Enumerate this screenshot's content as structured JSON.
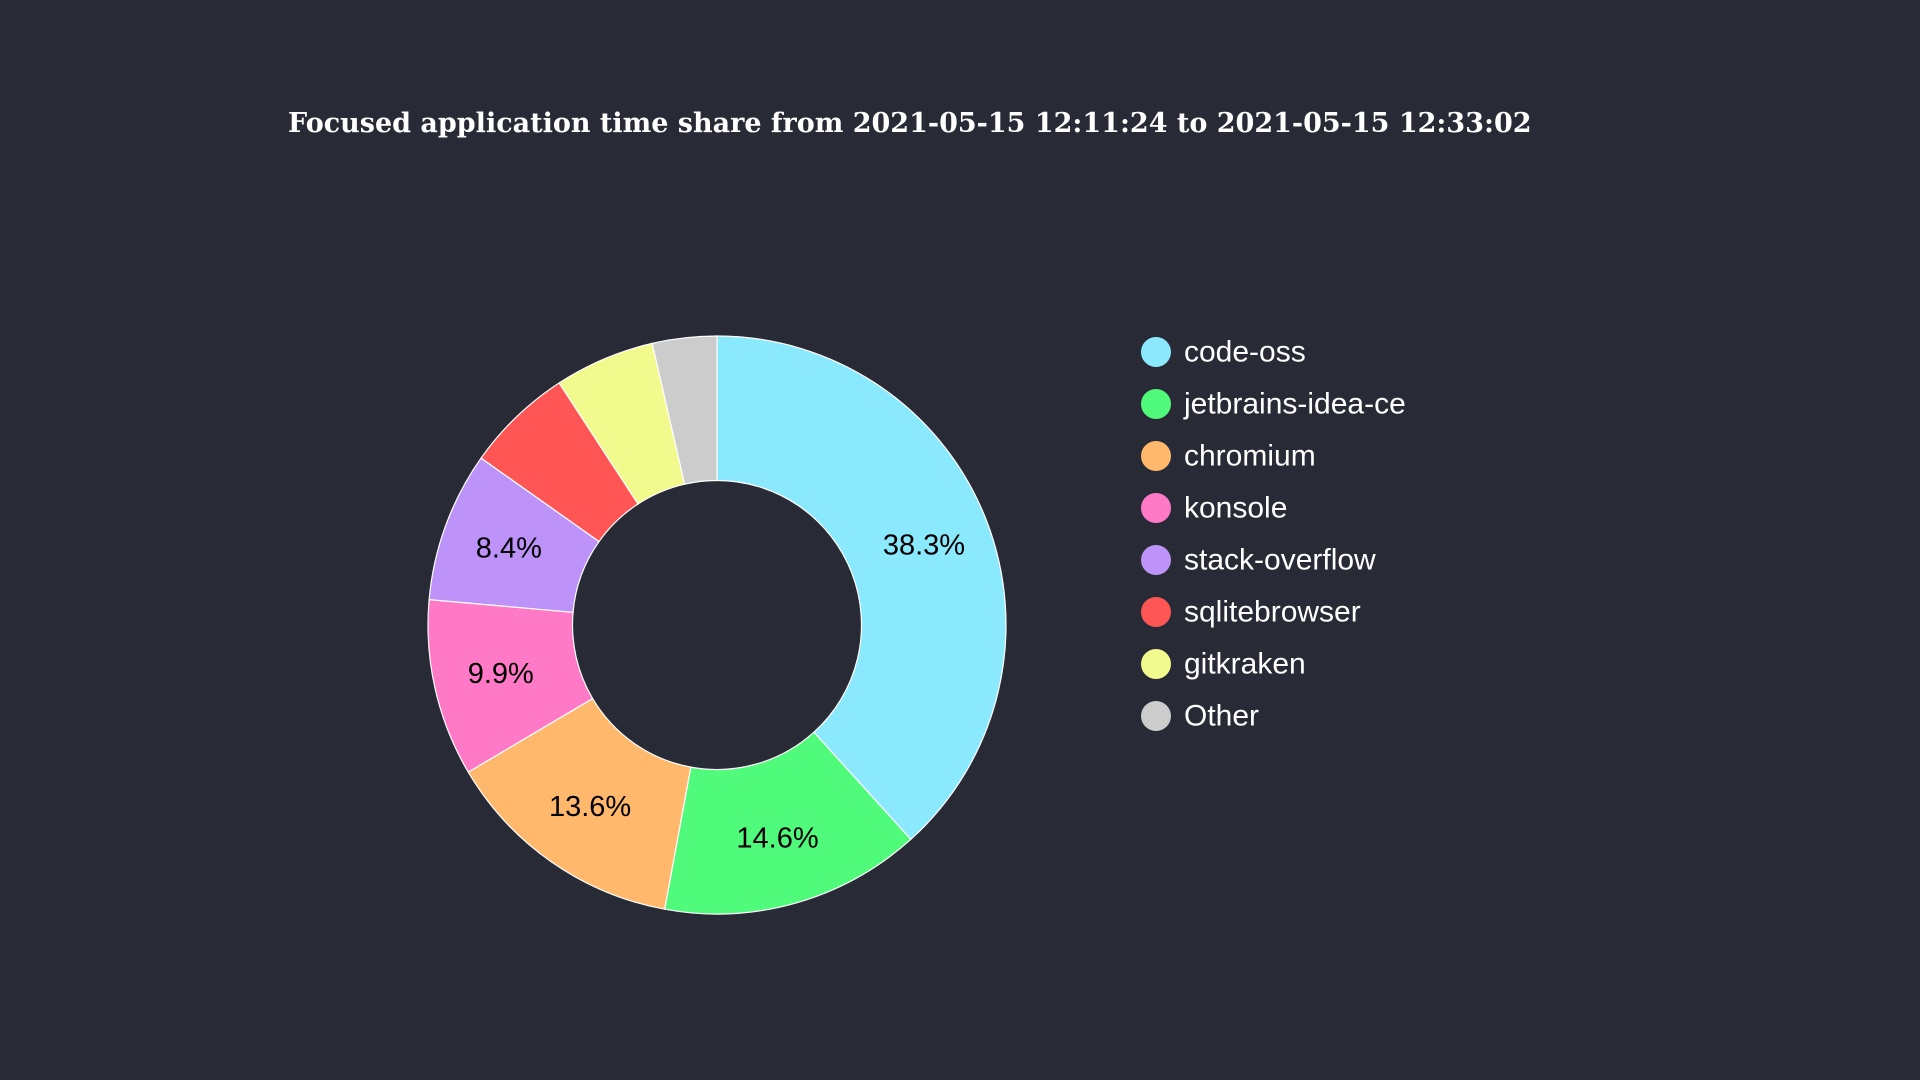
{
  "chart_data": {
    "type": "pie",
    "title": "Focused application time share from 2021-05-15 12:11:24 to 2021-05-15 12:33:02",
    "hole": 0.5,
    "direction": "clockwise",
    "start_angle": "top",
    "legend_placement": "right",
    "slices": [
      {
        "label": "code-oss",
        "value": 38.3,
        "text": "38.3%",
        "color": "#8be9fd"
      },
      {
        "label": "jetbrains-idea-ce",
        "value": 14.6,
        "text": "14.6%",
        "color": "#50fa7b"
      },
      {
        "label": "chromium",
        "value": 13.6,
        "text": "13.6%",
        "color": "#ffb86c"
      },
      {
        "label": "konsole",
        "value": 9.9,
        "text": "9.9%",
        "color": "#ff79c6"
      },
      {
        "label": "stack-overflow",
        "value": 8.4,
        "text": "8.4%",
        "color": "#bd93f9"
      },
      {
        "label": "sqlitebrowser",
        "value": 6.0,
        "text": "",
        "color": "#ff5555"
      },
      {
        "label": "gitkraken",
        "value": 5.6,
        "text": "",
        "color": "#f1fa8c"
      },
      {
        "label": "Other",
        "value": 3.6,
        "text": "",
        "color": "#cccccc"
      }
    ]
  }
}
